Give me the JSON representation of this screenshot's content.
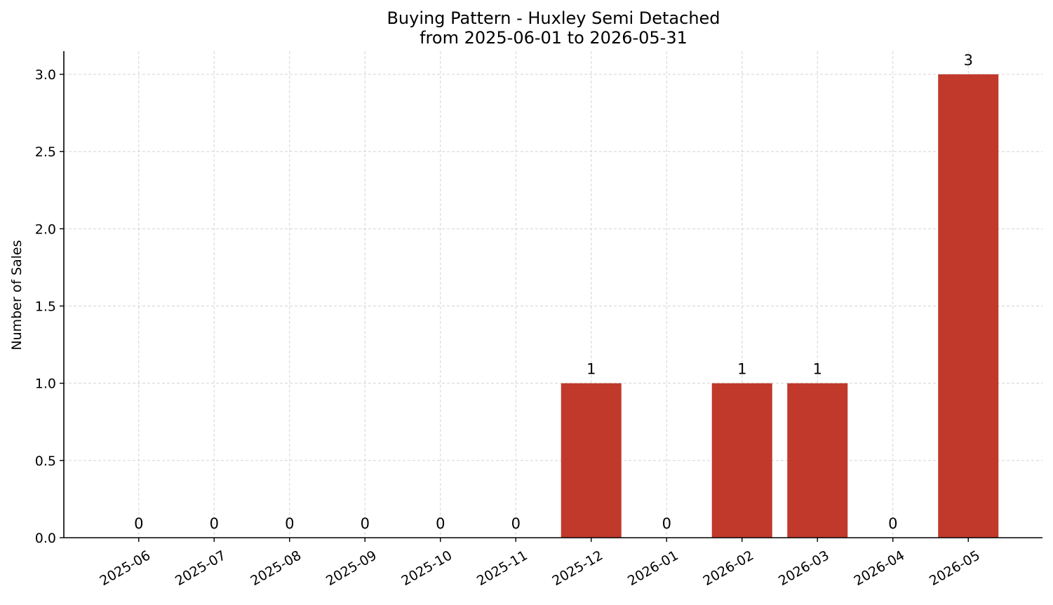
{
  "chart_data": {
    "type": "bar",
    "title": "Buying Pattern - Huxley Semi Detached",
    "subtitle": "from 2025-06-01 to 2026-05-31",
    "xlabel": "",
    "ylabel": "Number of Sales",
    "categories": [
      "2025-06",
      "2025-07",
      "2025-08",
      "2025-09",
      "2025-10",
      "2025-11",
      "2025-12",
      "2026-01",
      "2026-02",
      "2026-03",
      "2026-04",
      "2026-05"
    ],
    "values": [
      0,
      0,
      0,
      0,
      0,
      0,
      1,
      0,
      1,
      1,
      0,
      3
    ],
    "data_labels": [
      "0",
      "0",
      "0",
      "0",
      "0",
      "0",
      "1",
      "0",
      "1",
      "1",
      "0",
      "3"
    ],
    "ylim": [
      0,
      3.15
    ],
    "yticks": [
      "0.0",
      "0.5",
      "1.0",
      "1.5",
      "2.0",
      "2.5",
      "3.0"
    ],
    "ytick_values": [
      0,
      0.5,
      1.0,
      1.5,
      2.0,
      2.5,
      3.0
    ],
    "bar_color": "#c0392b",
    "grid": true,
    "legend": "none"
  }
}
